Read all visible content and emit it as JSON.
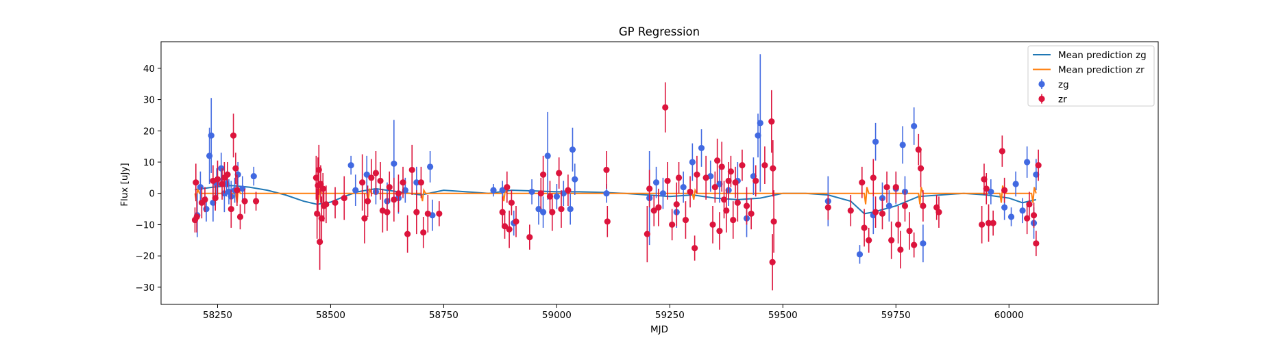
{
  "chart_data": {
    "type": "scatter",
    "title": "GP Regression",
    "xlabel": "MJD",
    "ylabel": "Flux [uJy]",
    "xlim": [
      58125,
      60330
    ],
    "ylim": [
      -35.5,
      48.5
    ],
    "xticks": [
      58250,
      58500,
      58750,
      59000,
      59250,
      59500,
      59750,
      60000
    ],
    "yticks": [
      -30,
      -20,
      -10,
      0,
      10,
      20,
      30,
      40
    ],
    "grid": false,
    "legend_position": "top-right",
    "colors": {
      "mean_zg": "#1f77b4",
      "mean_zr": "#ff7f0e",
      "zg": "#4169e1",
      "zr": "#dc143c"
    },
    "legend": [
      {
        "label": "Mean prediction zg",
        "kind": "line",
        "color": "#1f77b4"
      },
      {
        "label": "Mean prediction zr",
        "kind": "line",
        "color": "#ff7f0e"
      },
      {
        "label": "zg",
        "kind": "errorbar",
        "color": "#4169e1"
      },
      {
        "label": "zr",
        "kind": "errorbar",
        "color": "#dc143c"
      }
    ],
    "lines": [
      {
        "name": "Mean prediction zg",
        "color": "#1f77b4",
        "x": [
          58200,
          58240,
          58280,
          58320,
          58360,
          58400,
          58440,
          58470,
          58500,
          58530,
          58560,
          58600,
          58650,
          58700,
          58750,
          58800,
          58850,
          58900,
          58950,
          59000,
          59050,
          59100,
          59150,
          59200,
          59250,
          59300,
          59350,
          59400,
          59450,
          59500,
          59550,
          59600,
          59650,
          59680,
          59700,
          59750,
          59800,
          59850,
          59900,
          59950,
          60000,
          60030,
          60060
        ],
        "y": [
          1.2,
          2.0,
          2.5,
          2.0,
          1.0,
          -0.5,
          -2.5,
          -3.5,
          -2.8,
          -1.0,
          0.5,
          1.5,
          0.5,
          -0.5,
          1.0,
          0.5,
          0.0,
          1.0,
          0.8,
          0.5,
          0.5,
          0.3,
          0.0,
          -0.5,
          -1.0,
          -0.5,
          -1.5,
          -2.0,
          -1.5,
          0.0,
          0.0,
          -0.5,
          -2.5,
          -6.5,
          -6.0,
          -4.0,
          -1.0,
          -0.5,
          0.0,
          -0.5,
          -1.5,
          -3.0,
          -2.0
        ]
      },
      {
        "name": "Mean prediction zr",
        "color": "#ff7f0e",
        "x": [
          58200,
          58203,
          58206,
          58210,
          58290,
          58293,
          58296,
          58300,
          58470,
          58473,
          58476,
          58480,
          58580,
          58583,
          58586,
          58590,
          58700,
          58703,
          58706,
          58710,
          58880,
          58883,
          58886,
          58890,
          59300,
          59303,
          59306,
          59310,
          59680,
          59683,
          59686,
          59690,
          59800,
          59803,
          59806,
          59810,
          59980,
          59983,
          59986,
          59990,
          60050,
          60053,
          60056,
          60060
        ],
        "y": [
          0.0,
          -2.5,
          1.5,
          0.0,
          0.0,
          -3.0,
          2.0,
          0.0,
          0.0,
          -3.0,
          1.5,
          0.0,
          0.0,
          -3.0,
          1.5,
          0.0,
          0.0,
          -2.5,
          1.0,
          0.0,
          0.0,
          -2.5,
          1.0,
          0.0,
          0.0,
          -2.0,
          1.0,
          0.0,
          0.0,
          -3.5,
          2.0,
          0.0,
          0.0,
          -3.5,
          2.0,
          0.0,
          0.0,
          -3.0,
          2.5,
          0.0,
          0.0,
          -3.0,
          2.0,
          0.0
        ]
      }
    ],
    "series": [
      {
        "name": "zg",
        "color": "#4169e1",
        "x": [
          58205,
          58212,
          58225,
          58232,
          58236,
          58240,
          58248,
          58258,
          58265,
          58270,
          58275,
          58280,
          58288,
          58295,
          58305,
          58330,
          58545,
          58555,
          58580,
          58600,
          58625,
          58640,
          58650,
          58665,
          58690,
          58720,
          58725,
          58860,
          58880,
          58905,
          58945,
          58960,
          58970,
          58980,
          59000,
          59015,
          59030,
          59035,
          59040,
          59110,
          59205,
          59220,
          59235,
          59265,
          59280,
          59300,
          59320,
          59340,
          59360,
          59380,
          59400,
          59420,
          59435,
          59445,
          59450,
          59600,
          59670,
          59700,
          59705,
          59720,
          59735,
          59750,
          59765,
          59770,
          59790,
          59810,
          59960,
          59990,
          60005,
          60015,
          60030,
          60040,
          60055,
          60060
        ],
        "y": [
          -7.0,
          2.0,
          -5.0,
          12.0,
          18.5,
          -3.0,
          3.0,
          8.0,
          0.0,
          3.0,
          0.5,
          -1.0,
          1.0,
          6.0,
          1.5,
          5.5,
          9.0,
          1.0,
          6.0,
          0.5,
          -2.5,
          9.5,
          -1.5,
          1.0,
          3.5,
          8.5,
          -7.0,
          1.0,
          1.0,
          -9.5,
          0.5,
          -5.0,
          -6.0,
          12.0,
          -1.0,
          0.0,
          -5.0,
          14.0,
          4.5,
          0.0,
          -1.5,
          3.5,
          0.0,
          -6.0,
          2.0,
          10.0,
          14.5,
          5.5,
          3.0,
          1.0,
          4.0,
          -8.0,
          5.5,
          18.5,
          22.5,
          -2.5,
          -19.5,
          -7.0,
          16.5,
          -1.5,
          -4.0,
          1.5,
          15.5,
          0.5,
          21.5,
          -16.0,
          0.5,
          -4.5,
          -7.5,
          3.0,
          -5.5,
          10.0,
          -9.5,
          6.0
        ],
        "err": [
          7,
          5,
          4,
          9,
          12,
          6,
          5,
          5,
          6,
          4,
          4,
          5,
          4,
          4,
          4,
          3,
          3,
          5,
          6,
          4,
          6,
          14,
          5,
          4,
          5,
          5,
          5,
          2,
          3,
          4,
          4,
          5,
          5,
          14,
          4,
          4,
          5,
          7,
          5,
          3,
          15,
          5,
          5,
          5,
          5,
          6,
          6,
          5,
          6,
          5,
          6,
          6,
          6,
          7,
          22,
          8,
          3,
          6,
          6,
          5,
          5,
          5,
          6,
          5,
          6,
          6,
          4,
          4,
          3,
          4,
          4,
          5,
          5,
          5
        ]
      },
      {
        "name": "zr",
        "color": "#dc143c",
        "x": [
          58200,
          58202,
          58204,
          58215,
          58222,
          58240,
          58245,
          58250,
          58260,
          58265,
          58272,
          58280,
          58285,
          58290,
          58293,
          58300,
          58310,
          58335,
          58468,
          58470,
          58472,
          58474,
          58476,
          58478,
          58480,
          58483,
          58485,
          58490,
          58510,
          58530,
          58570,
          58575,
          58582,
          58590,
          58600,
          58610,
          58615,
          58625,
          58630,
          58640,
          58650,
          58660,
          58670,
          58680,
          58690,
          58700,
          58705,
          58715,
          58740,
          58880,
          58885,
          58890,
          58895,
          58900,
          58910,
          58940,
          58965,
          58970,
          58985,
          58990,
          59005,
          59010,
          59025,
          59110,
          59112,
          59200,
          59205,
          59215,
          59225,
          59240,
          59245,
          59255,
          59265,
          59270,
          59285,
          59295,
          59305,
          59310,
          59330,
          59345,
          59350,
          59355,
          59360,
          59365,
          59370,
          59375,
          59380,
          59385,
          59390,
          59395,
          59400,
          59410,
          59420,
          59430,
          59440,
          59460,
          59475,
          59477,
          59478,
          59480,
          59600,
          59650,
          59675,
          59680,
          59690,
          59700,
          59705,
          59720,
          59730,
          59740,
          59750,
          59755,
          59760,
          59770,
          59780,
          59790,
          59800,
          59805,
          59810,
          59840,
          59845,
          59940,
          59945,
          59950,
          59955,
          59965,
          59985,
          59990,
          60040,
          60045,
          60055,
          60060,
          60065
        ],
        "y": [
          -8.5,
          3.5,
          -7.5,
          -3.0,
          -2.0,
          4.0,
          -1.5,
          4.5,
          3.0,
          5.0,
          6.0,
          -5.0,
          18.5,
          8.0,
          1.0,
          -7.5,
          -2.5,
          -2.5,
          5.0,
          -6.5,
          2.5,
          7.5,
          -15.5,
          3.0,
          -8.0,
          1.5,
          -4.0,
          -3.5,
          -3.0,
          -1.5,
          3.5,
          -8.0,
          -2.5,
          5.0,
          6.5,
          4.0,
          -5.5,
          -6.0,
          2.0,
          -2.0,
          0.0,
          3.5,
          -13.0,
          7.5,
          -6.0,
          3.5,
          -12.5,
          -6.5,
          -6.5,
          -6.0,
          -10.5,
          2.0,
          -11.5,
          -3.0,
          -9.0,
          -14.0,
          0.0,
          6.0,
          -1.0,
          -6.0,
          6.5,
          -5.0,
          1.0,
          7.5,
          -9.0,
          -13.0,
          1.5,
          -5.5,
          -4.5,
          27.5,
          4.0,
          -10.0,
          -3.5,
          5.0,
          -8.5,
          0.5,
          -17.5,
          6.0,
          5.0,
          -10.0,
          2.0,
          10.5,
          -12.0,
          8.5,
          -2.0,
          -5.5,
          4.0,
          7.0,
          -8.5,
          3.5,
          -3.0,
          9.0,
          -4.0,
          -6.5,
          4.0,
          9.0,
          23.0,
          -22.0,
          8.0,
          -9.0,
          -4.5,
          -5.5,
          3.5,
          -11.0,
          -15.0,
          5.0,
          -6.0,
          -6.5,
          2.0,
          -15.0,
          2.0,
          -10.0,
          -18.0,
          -4.0,
          -12.0,
          -16.5,
          14.0,
          8.0,
          -4.0,
          -4.5,
          -6.0,
          -10.0,
          4.5,
          1.5,
          -9.5,
          -9.5,
          13.5,
          1.0,
          -8.0,
          -3.5,
          -7.0,
          -16.0,
          9.0
        ],
        "err": [
          4,
          6,
          5,
          5,
          4,
          5,
          4,
          6,
          5,
          5,
          4,
          6,
          7,
          5,
          5,
          4,
          4,
          3,
          7,
          8,
          9,
          8,
          9,
          6,
          7,
          5,
          5,
          6,
          5,
          7,
          9,
          8,
          5,
          6,
          7,
          6,
          7,
          6,
          5,
          7,
          6,
          5,
          6,
          8,
          7,
          5,
          5,
          6,
          4,
          5,
          4,
          5,
          6,
          4,
          5,
          4,
          5,
          6,
          5,
          6,
          5,
          6,
          5,
          6,
          5,
          9,
          6,
          5,
          6,
          8,
          6,
          5,
          7,
          5,
          6,
          5,
          4,
          6,
          7,
          6,
          5,
          7,
          6,
          8,
          6,
          7,
          6,
          5,
          6,
          5,
          6,
          5,
          6,
          5,
          5,
          6,
          10,
          9,
          9,
          10,
          4,
          5,
          5,
          6,
          4,
          6,
          5,
          5,
          5,
          6,
          5,
          6,
          6,
          5,
          6,
          4,
          5,
          6,
          5,
          4,
          5,
          6,
          5,
          5,
          6,
          4,
          5,
          4,
          5,
          4,
          4,
          4,
          5
        ]
      }
    ]
  }
}
